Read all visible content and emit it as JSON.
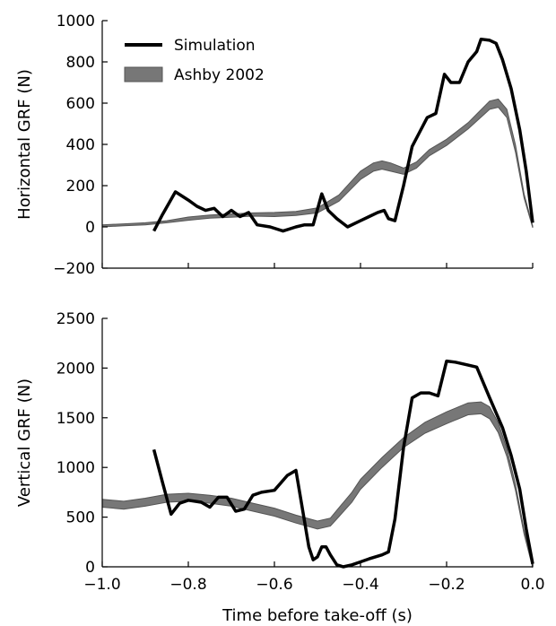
{
  "chart_data": [
    {
      "type": "line",
      "ylabel": "Horizontal GRF (N)",
      "xlim": [
        -1.0,
        0.0
      ],
      "ylim": [
        -200,
        1000
      ],
      "yticks": [
        -200,
        0,
        200,
        400,
        600,
        800,
        1000
      ],
      "ytick_labels": [
        "−200",
        "0",
        "200",
        "400",
        "600",
        "800",
        "1000"
      ],
      "legend_position": "top-left",
      "legend": [
        {
          "name": "Simulation",
          "style": "line",
          "color": "#000000"
        },
        {
          "name": "Ashby 2002",
          "style": "band",
          "color": "#777777"
        }
      ],
      "series": [
        {
          "name": "Simulation",
          "color": "#000000",
          "x": [
            -0.88,
            -0.86,
            -0.83,
            -0.8,
            -0.78,
            -0.76,
            -0.74,
            -0.72,
            -0.7,
            -0.68,
            -0.66,
            -0.64,
            -0.61,
            -0.58,
            -0.55,
            -0.53,
            -0.51,
            -0.49,
            -0.475,
            -0.455,
            -0.43,
            -0.4,
            -0.38,
            -0.36,
            -0.345,
            -0.335,
            -0.32,
            -0.3,
            -0.28,
            -0.265,
            -0.245,
            -0.225,
            -0.205,
            -0.19,
            -0.17,
            -0.15,
            -0.13,
            -0.12,
            -0.1,
            -0.085,
            -0.07,
            -0.05,
            -0.03,
            -0.015,
            0.0
          ],
          "y": [
            -20,
            60,
            170,
            130,
            100,
            80,
            90,
            50,
            80,
            50,
            70,
            10,
            0,
            -20,
            0,
            10,
            10,
            160,
            80,
            40,
            0,
            30,
            50,
            70,
            80,
            40,
            30,
            200,
            390,
            450,
            530,
            550,
            740,
            700,
            700,
            800,
            850,
            910,
            905,
            890,
            810,
            670,
            470,
            270,
            20
          ]
        },
        {
          "name": "Ashby 2002",
          "color": "#777777",
          "x": [
            -1.0,
            -0.95,
            -0.9,
            -0.85,
            -0.8,
            -0.75,
            -0.7,
            -0.65,
            -0.6,
            -0.55,
            -0.5,
            -0.45,
            -0.4,
            -0.37,
            -0.35,
            -0.33,
            -0.3,
            -0.27,
            -0.24,
            -0.2,
            -0.15,
            -0.1,
            -0.08,
            -0.06,
            -0.04,
            -0.02,
            0.0
          ],
          "y": [
            5,
            10,
            15,
            25,
            40,
            50,
            55,
            60,
            60,
            65,
            80,
            140,
            250,
            290,
            300,
            290,
            270,
            300,
            360,
            410,
            490,
            590,
            600,
            550,
            380,
            150,
            0
          ],
          "band_half_width": [
            5,
            5,
            5,
            5,
            8,
            8,
            8,
            8,
            10,
            10,
            12,
            15,
            20,
            20,
            20,
            20,
            15,
            15,
            15,
            15,
            15,
            20,
            20,
            20,
            18,
            10,
            4
          ]
        }
      ]
    },
    {
      "type": "line",
      "xlabel": "Time before take-off (s)",
      "ylabel": "Vertical GRF (N)",
      "xlim": [
        -1.0,
        0.0
      ],
      "ylim": [
        0,
        2500
      ],
      "xticks": [
        -1.0,
        -0.8,
        -0.6,
        -0.4,
        -0.2,
        0.0
      ],
      "xtick_labels": [
        "−1.0",
        "−0.8",
        "−0.6",
        "−0.4",
        "−0.2",
        "0.0"
      ],
      "yticks": [
        0,
        500,
        1000,
        1500,
        2000,
        2500
      ],
      "ytick_labels": [
        "0",
        "500",
        "1000",
        "1500",
        "2000",
        "2500"
      ],
      "series": [
        {
          "name": "Simulation",
          "color": "#000000",
          "x": [
            -0.88,
            -0.86,
            -0.84,
            -0.82,
            -0.8,
            -0.77,
            -0.75,
            -0.73,
            -0.71,
            -0.69,
            -0.67,
            -0.65,
            -0.63,
            -0.6,
            -0.57,
            -0.55,
            -0.52,
            -0.51,
            -0.5,
            -0.49,
            -0.48,
            -0.47,
            -0.455,
            -0.44,
            -0.42,
            -0.4,
            -0.38,
            -0.35,
            -0.335,
            -0.32,
            -0.3,
            -0.28,
            -0.26,
            -0.24,
            -0.22,
            -0.2,
            -0.18,
            -0.15,
            -0.13,
            -0.1,
            -0.07,
            -0.05,
            -0.03,
            -0.015,
            0.0
          ],
          "y": [
            1180,
            850,
            530,
            640,
            670,
            650,
            600,
            700,
            700,
            560,
            580,
            720,
            750,
            770,
            920,
            970,
            200,
            70,
            100,
            200,
            200,
            120,
            20,
            0,
            20,
            50,
            80,
            120,
            150,
            480,
            1200,
            1700,
            1750,
            1750,
            1720,
            2070,
            2060,
            2030,
            2010,
            1700,
            1400,
            1120,
            780,
            380,
            30
          ]
        },
        {
          "name": "Ashby 2002",
          "color": "#777777",
          "x": [
            -1.0,
            -0.95,
            -0.9,
            -0.85,
            -0.8,
            -0.75,
            -0.7,
            -0.65,
            -0.6,
            -0.55,
            -0.5,
            -0.47,
            -0.45,
            -0.42,
            -0.4,
            -0.35,
            -0.3,
            -0.25,
            -0.2,
            -0.15,
            -0.12,
            -0.1,
            -0.08,
            -0.06,
            -0.04,
            -0.02,
            0.0
          ],
          "y": [
            640,
            620,
            650,
            690,
            700,
            680,
            650,
            600,
            550,
            480,
            420,
            450,
            550,
            700,
            830,
            1050,
            1250,
            1400,
            1500,
            1590,
            1600,
            1550,
            1400,
            1150,
            800,
            350,
            0
          ],
          "band_half_width": [
            40,
            40,
            40,
            40,
            40,
            40,
            40,
            40,
            40,
            40,
            40,
            40,
            45,
            50,
            50,
            50,
            50,
            55,
            60,
            60,
            60,
            60,
            50,
            40,
            30,
            20,
            10
          ]
        }
      ]
    }
  ]
}
